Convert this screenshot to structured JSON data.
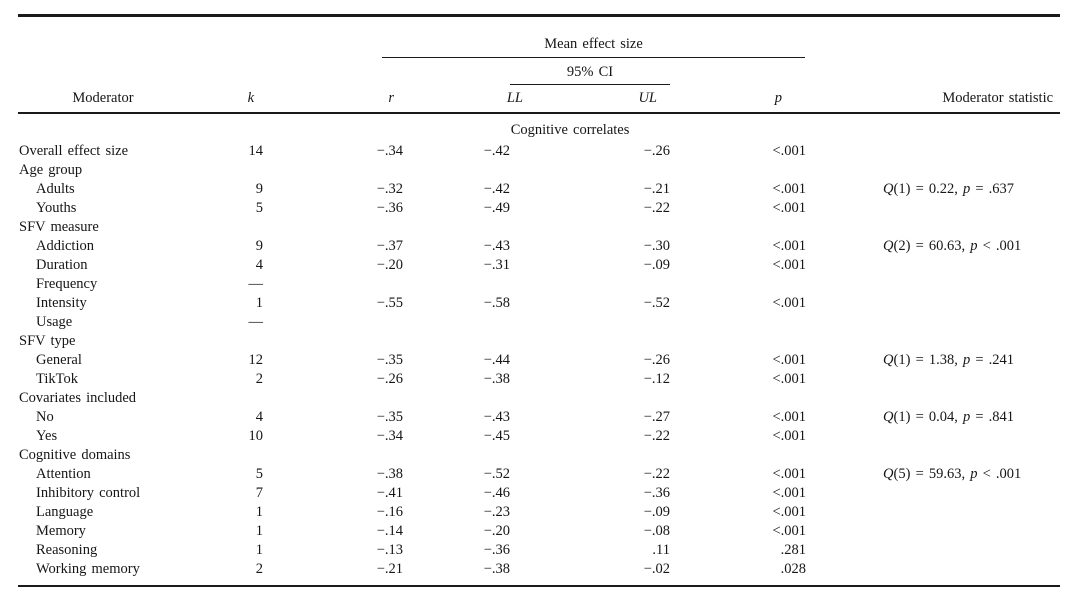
{
  "table": {
    "header": {
      "mean_effect_size": "Mean effect size",
      "ci": "95% CI",
      "moderator": "Moderator",
      "k": "k",
      "r": "r",
      "ll": "LL",
      "ul": "UL",
      "p": "p",
      "stat": "Moderator statistic"
    },
    "rows": [
      {
        "type": "section",
        "label": "Cognitive correlates"
      },
      {
        "type": "data",
        "indent": 0,
        "label": "Overall effect size",
        "k": "14",
        "r": "−.34",
        "ll": "−.42",
        "ul": "−.26",
        "p": "<.001"
      },
      {
        "type": "group",
        "label": "Age group"
      },
      {
        "type": "data",
        "indent": 1,
        "label": "Adults",
        "k": "9",
        "r": "−.32",
        "ll": "−.42",
        "ul": "−.21",
        "p": "<.001",
        "stat": [
          "Q",
          "(1) = 0.22, ",
          "p",
          " = .637"
        ]
      },
      {
        "type": "data",
        "indent": 1,
        "label": "Youths",
        "k": "5",
        "r": "−.36",
        "ll": "−.49",
        "ul": "−.22",
        "p": "<.001"
      },
      {
        "type": "group",
        "label": "SFV measure"
      },
      {
        "type": "data",
        "indent": 1,
        "label": "Addiction",
        "k": "9",
        "r": "−.37",
        "ll": "−.43",
        "ul": "−.30",
        "p": "<.001",
        "stat": [
          "Q",
          "(2) = 60.63, ",
          "p",
          " < .001"
        ]
      },
      {
        "type": "data",
        "indent": 1,
        "label": "Duration",
        "k": "4",
        "r": "−.20",
        "ll": "−.31",
        "ul": "−.09",
        "p": "<.001"
      },
      {
        "type": "data",
        "indent": 1,
        "label": "Frequency",
        "k": "—"
      },
      {
        "type": "data",
        "indent": 1,
        "label": "Intensity",
        "k": "1",
        "r": "−.55",
        "ll": "−.58",
        "ul": "−.52",
        "p": "<.001"
      },
      {
        "type": "data",
        "indent": 1,
        "label": "Usage",
        "k": "—"
      },
      {
        "type": "group",
        "label": "SFV type"
      },
      {
        "type": "data",
        "indent": 1,
        "label": "General",
        "k": "12",
        "r": "−.35",
        "ll": "−.44",
        "ul": "−.26",
        "p": "<.001",
        "stat": [
          "Q",
          "(1) = 1.38, ",
          "p",
          " = .241"
        ]
      },
      {
        "type": "data",
        "indent": 1,
        "label": "TikTok",
        "k": "2",
        "r": "−.26",
        "ll": "−.38",
        "ul": "−.12",
        "p": "<.001"
      },
      {
        "type": "group",
        "label": "Covariates included"
      },
      {
        "type": "data",
        "indent": 1,
        "label": "No",
        "k": "4",
        "r": "−.35",
        "ll": "−.43",
        "ul": "−.27",
        "p": "<.001",
        "stat": [
          "Q",
          "(1) = 0.04, ",
          "p",
          " = .841"
        ]
      },
      {
        "type": "data",
        "indent": 1,
        "label": "Yes",
        "k": "10",
        "r": "−.34",
        "ll": "−.45",
        "ul": "−.22",
        "p": "<.001"
      },
      {
        "type": "group",
        "label": "Cognitive domains"
      },
      {
        "type": "data",
        "indent": 1,
        "label": "Attention",
        "k": "5",
        "r": "−.38",
        "ll": "−.52",
        "ul": "−.22",
        "p": "<.001",
        "stat": [
          "Q",
          "(5) = 59.63, ",
          "p",
          " < .001"
        ]
      },
      {
        "type": "data",
        "indent": 1,
        "label": "Inhibitory control",
        "k": "7",
        "r": "−.41",
        "ll": "−.46",
        "ul": "−.36",
        "p": "<.001"
      },
      {
        "type": "data",
        "indent": 1,
        "label": "Language",
        "k": "1",
        "r": "−.16",
        "ll": "−.23",
        "ul": "−.09",
        "p": "<.001"
      },
      {
        "type": "data",
        "indent": 1,
        "label": "Memory",
        "k": "1",
        "r": "−.14",
        "ll": "−.20",
        "ul": "−.08",
        "p": "<.001"
      },
      {
        "type": "data",
        "indent": 1,
        "label": "Reasoning",
        "k": "1",
        "r": "−.13",
        "ll": "−.36",
        "ul": ".11",
        "p": ".281"
      },
      {
        "type": "data",
        "indent": 1,
        "label": "Working memory",
        "k": "2",
        "r": "−.21",
        "ll": "−.38",
        "ul": "−.02",
        "p": ".028"
      }
    ]
  }
}
